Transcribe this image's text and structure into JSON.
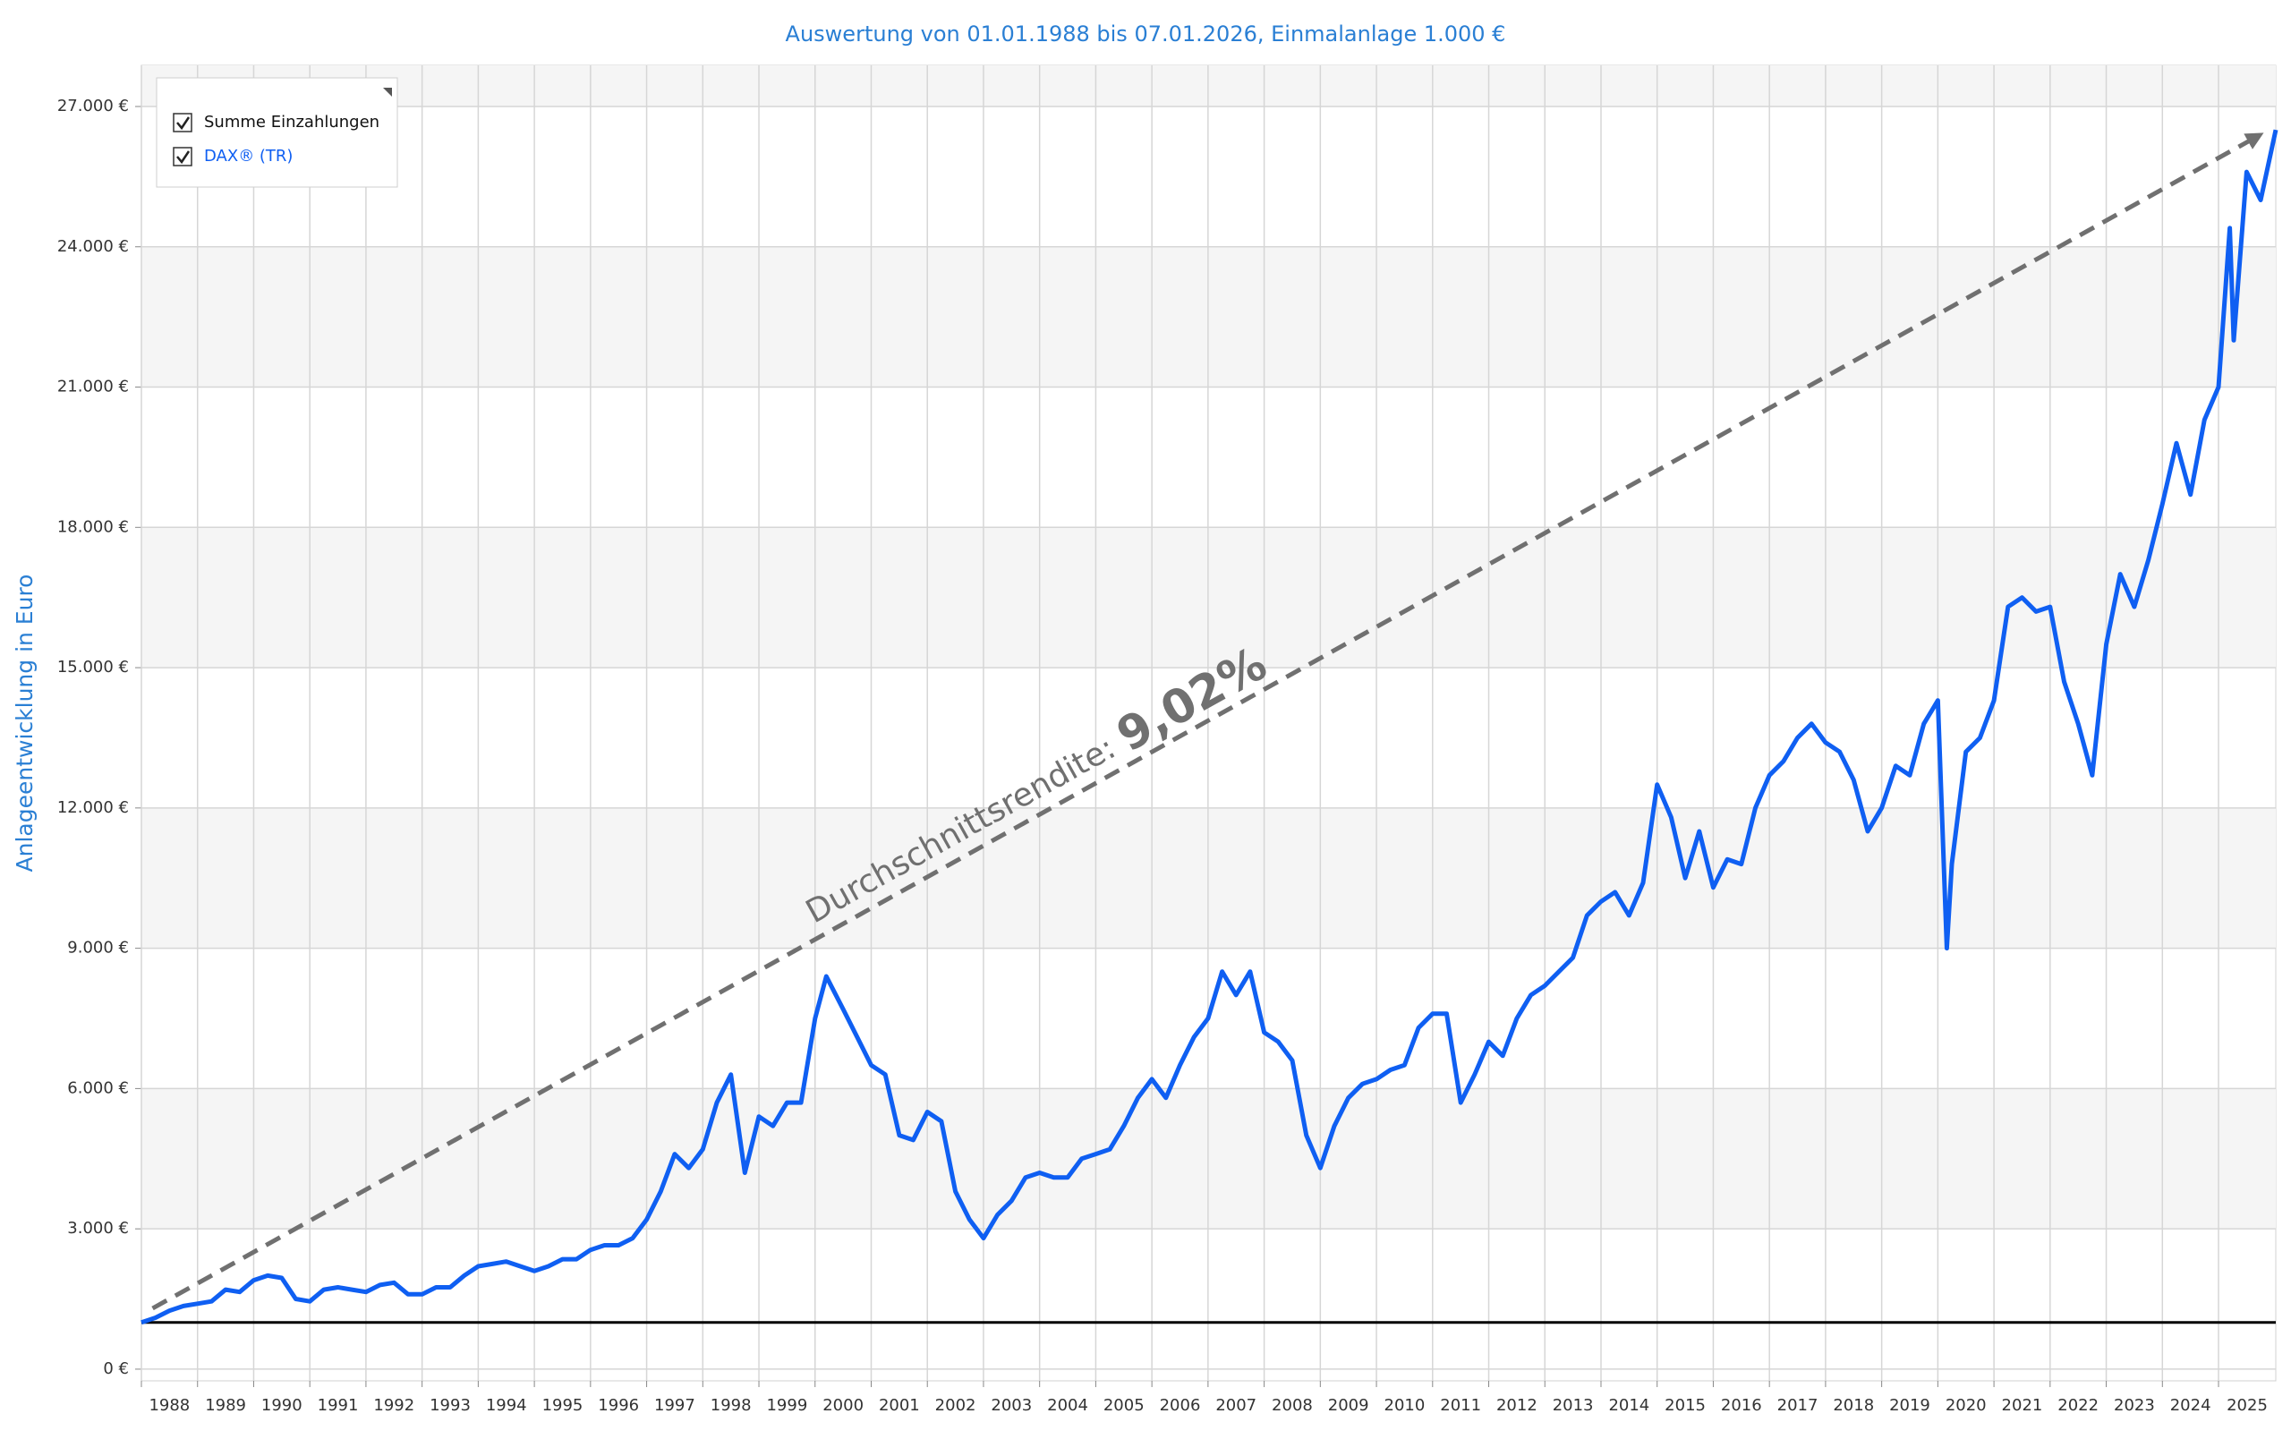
{
  "chart_data": {
    "type": "line",
    "title": "Auswertung von 01.01.1988 bis 07.01.2026, Einmalanlage 1.000 €",
    "y_label": "Anlageentwicklung  in Euro",
    "xlim": [
      1988,
      2026.02
    ],
    "xticks": [
      1988,
      1989,
      1990,
      1991,
      1992,
      1993,
      1994,
      1995,
      1996,
      1997,
      1998,
      1999,
      2000,
      2001,
      2002,
      2003,
      2004,
      2005,
      2006,
      2007,
      2008,
      2009,
      2010,
      2011,
      2012,
      2013,
      2014,
      2015,
      2016,
      2017,
      2018,
      2019,
      2020,
      2021,
      2022,
      2023,
      2024,
      2025
    ],
    "ylim": [
      -250,
      27880
    ],
    "yticks": [
      {
        "value": 0,
        "label": "0 €"
      },
      {
        "value": 3000,
        "label": "3.000 €"
      },
      {
        "value": 6000,
        "label": "6.000 €"
      },
      {
        "value": 9000,
        "label": "9.000 €"
      },
      {
        "value": 12000,
        "label": "12.000 €"
      },
      {
        "value": 15000,
        "label": "15.000 €"
      },
      {
        "value": 18000,
        "label": "18.000 €"
      },
      {
        "value": 21000,
        "label": "21.000 €"
      },
      {
        "value": 24000,
        "label": "24.000 €"
      },
      {
        "value": 27000,
        "label": "27.000 €"
      }
    ],
    "grid": true,
    "legend": "top-left",
    "series": [
      {
        "name": "Summe Einzahlungen",
        "color": "#000000",
        "x": [
          1988,
          2026.02
        ],
        "values": [
          1000,
          1000
        ]
      },
      {
        "name": "DAX® (TR)",
        "color": "#0f5ff2",
        "x": [
          1988,
          1988.25,
          1988.5,
          1988.75,
          1989,
          1989.25,
          1989.5,
          1989.75,
          1990,
          1990.25,
          1990.5,
          1990.75,
          1991,
          1991.25,
          1991.5,
          1991.75,
          1992,
          1992.25,
          1992.5,
          1992.75,
          1993,
          1993.25,
          1993.5,
          1993.75,
          1994,
          1994.25,
          1994.5,
          1994.75,
          1995,
          1995.25,
          1995.5,
          1995.75,
          1996,
          1996.25,
          1996.5,
          1996.75,
          1997,
          1997.25,
          1997.5,
          1997.75,
          1998,
          1998.25,
          1998.5,
          1998.75,
          1999,
          1999.25,
          1999.5,
          1999.75,
          2000,
          2000.2,
          2000.5,
          2000.75,
          2001,
          2001.25,
          2001.5,
          2001.75,
          2002,
          2002.25,
          2002.5,
          2002.75,
          2003,
          2003.25,
          2003.5,
          2003.75,
          2004,
          2004.25,
          2004.5,
          2004.75,
          2005,
          2005.25,
          2005.5,
          2005.75,
          2006,
          2006.25,
          2006.5,
          2006.75,
          2007,
          2007.25,
          2007.5,
          2007.75,
          2008,
          2008.25,
          2008.5,
          2008.75,
          2009,
          2009.25,
          2009.5,
          2009.75,
          2010,
          2010.25,
          2010.5,
          2010.75,
          2011,
          2011.25,
          2011.5,
          2011.75,
          2012,
          2012.25,
          2012.5,
          2012.75,
          2013,
          2013.25,
          2013.5,
          2013.75,
          2014,
          2014.25,
          2014.5,
          2014.75,
          2015,
          2015.25,
          2015.5,
          2015.75,
          2016,
          2016.25,
          2016.5,
          2016.75,
          2017,
          2017.25,
          2017.5,
          2017.75,
          2018,
          2018.25,
          2018.5,
          2018.75,
          2019,
          2019.25,
          2019.5,
          2019.75,
          2020,
          2020.16,
          2020.25,
          2020.5,
          2020.75,
          2021,
          2021.25,
          2021.5,
          2021.75,
          2022,
          2022.25,
          2022.5,
          2022.75,
          2023,
          2023.25,
          2023.5,
          2023.75,
          2024,
          2024.25,
          2024.5,
          2024.75,
          2025,
          2025.2,
          2025.27,
          2025.5,
          2025.75,
          2026.02
        ],
        "values": [
          1000,
          1100,
          1250,
          1350,
          1400,
          1450,
          1700,
          1650,
          1900,
          2000,
          1950,
          1500,
          1450,
          1700,
          1750,
          1700,
          1650,
          1800,
          1850,
          1600,
          1600,
          1750,
          1750,
          2000,
          2200,
          2250,
          2300,
          2200,
          2100,
          2200,
          2350,
          2350,
          2550,
          2650,
          2650,
          2800,
          3200,
          3800,
          4600,
          4300,
          4700,
          5700,
          6300,
          4200,
          5400,
          5200,
          5700,
          5700,
          7500,
          8400,
          7700,
          7100,
          6500,
          6300,
          5000,
          4900,
          5500,
          5300,
          3800,
          3200,
          2800,
          3300,
          3600,
          4100,
          4200,
          4100,
          4100,
          4500,
          4600,
          4700,
          5200,
          5800,
          6200,
          5800,
          6500,
          7100,
          7500,
          8500,
          8000,
          8500,
          7200,
          7000,
          6600,
          5000,
          4300,
          5200,
          5800,
          6100,
          6200,
          6400,
          6500,
          7300,
          7600,
          7600,
          5700,
          6300,
          7000,
          6700,
          7500,
          8000,
          8200,
          8500,
          8800,
          9700,
          10000,
          10200,
          9700,
          10400,
          12500,
          11800,
          10500,
          11500,
          10300,
          10900,
          10800,
          12000,
          12700,
          13000,
          13500,
          13800,
          13400,
          13200,
          12600,
          11500,
          12000,
          12900,
          12700,
          13800,
          14300,
          9000,
          10800,
          13200,
          13500,
          14300,
          16300,
          16500,
          16200,
          16300,
          14700,
          13800,
          12700,
          15500,
          17000,
          16300,
          17300,
          18500,
          19800,
          18700,
          20300,
          21000,
          24400,
          22000,
          25600,
          25000,
          26500
        ]
      }
    ],
    "trend_line": {
      "label": "Durchschnittsrendite:",
      "value_label": "9,02%",
      "color": "#707070",
      "x": [
        1988.2,
        2025.75
      ],
      "values": [
        1300,
        26400
      ]
    }
  }
}
